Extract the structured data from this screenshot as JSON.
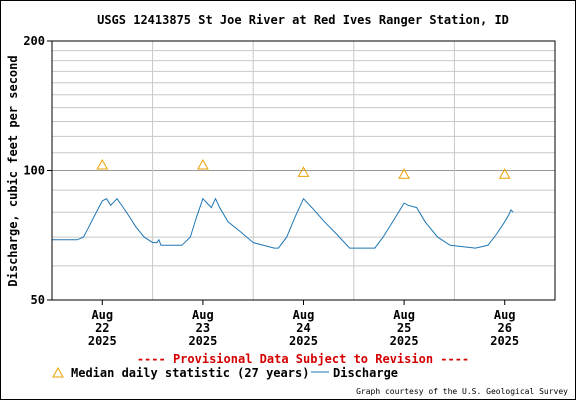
{
  "chart_data": {
    "type": "line",
    "title": "USGS 12413875 St Joe River at Red Ives Ranger Station, ID",
    "ylabel": "Discharge, cubic feet per second",
    "xlabel": "",
    "y_scale": "log",
    "ylim": [
      50,
      200
    ],
    "y_ticks": [
      50,
      100,
      200
    ],
    "y_tick_labels": [
      "50",
      "100",
      "200"
    ],
    "x_tick_labels": [
      {
        "month": "Aug",
        "day": "22",
        "year": "2025",
        "date": "2025-08-22T00:00"
      },
      {
        "month": "Aug",
        "day": "23",
        "year": "2025",
        "date": "2025-08-23T00:00"
      },
      {
        "month": "Aug",
        "day": "24",
        "year": "2025",
        "date": "2025-08-24T00:00"
      },
      {
        "month": "Aug",
        "day": "25",
        "year": "2025",
        "date": "2025-08-25T00:00"
      },
      {
        "month": "Aug",
        "day": "26",
        "year": "2025",
        "date": "2025-08-26T00:00"
      }
    ],
    "xlim": [
      "2025-08-21T12:00",
      "2025-08-26T12:00"
    ],
    "grid": true,
    "series": [
      {
        "name": "Median daily statistic (27 years)",
        "marker": "triangle",
        "color": "#e8a000",
        "x": [
          "2025-08-22T00:00",
          "2025-08-23T00:00",
          "2025-08-24T00:00",
          "2025-08-25T00:00",
          "2025-08-26T00:00"
        ],
        "y": [
          103,
          103,
          99,
          98,
          98
        ]
      },
      {
        "name": "Discharge",
        "marker": "line",
        "color": "#1f77b4",
        "x": [
          "2025-08-21T12:00",
          "2025-08-21T18:00",
          "2025-08-21T19:30",
          "2025-08-21T20:30",
          "2025-08-21T22:00",
          "2025-08-22T00:00",
          "2025-08-22T01:00",
          "2025-08-22T02:00",
          "2025-08-22T03:30",
          "2025-08-22T05:00",
          "2025-08-22T06:30",
          "2025-08-22T08:00",
          "2025-08-22T10:00",
          "2025-08-22T12:00",
          "2025-08-22T13:00",
          "2025-08-22T13:30",
          "2025-08-22T14:00",
          "2025-08-22T16:00",
          "2025-08-22T19:00",
          "2025-08-22T21:00",
          "2025-08-22T22:30",
          "2025-08-23T00:00",
          "2025-08-23T01:00",
          "2025-08-23T02:00",
          "2025-08-23T03:00",
          "2025-08-23T04:00",
          "2025-08-23T06:00",
          "2025-08-23T09:00",
          "2025-08-23T12:00",
          "2025-08-23T17:00",
          "2025-08-23T18:00",
          "2025-08-23T20:00",
          "2025-08-23T22:00",
          "2025-08-24T00:00",
          "2025-08-24T02:00",
          "2025-08-24T05:00",
          "2025-08-24T08:00",
          "2025-08-24T11:00",
          "2025-08-24T17:00",
          "2025-08-24T19:00",
          "2025-08-24T22:00",
          "2025-08-25T00:00",
          "2025-08-25T01:00",
          "2025-08-25T03:00",
          "2025-08-25T05:00",
          "2025-08-25T08:00",
          "2025-08-25T11:00",
          "2025-08-25T17:00",
          "2025-08-25T20:00",
          "2025-08-25T22:00",
          "2025-08-26T00:00",
          "2025-08-26T01:00",
          "2025-08-26T01:30",
          "2025-08-26T02:00"
        ],
        "y": [
          69,
          69,
          70,
          73,
          78,
          85,
          86,
          83,
          86,
          82,
          78,
          74,
          70,
          68,
          68,
          69,
          67,
          67,
          67,
          70,
          78,
          86,
          84,
          82,
          86,
          82,
          76,
          72,
          68,
          66,
          66,
          70,
          78,
          86,
          82,
          76,
          71,
          66,
          66,
          70,
          78,
          84,
          83,
          82,
          76,
          70,
          67,
          66,
          67,
          71,
          76,
          79,
          81,
          80
        ]
      }
    ]
  },
  "notice": "---- Provisional Data Subject to Revision ----",
  "legend": {
    "median_label": "Median daily statistic (27 years)",
    "discharge_label": "Discharge"
  },
  "credit": "Graph courtesy of the U.S. Geological Survey",
  "colors": {
    "median": "#e8a000",
    "discharge": "#1f77b4",
    "notice": "#d40000",
    "grid": "#c8c8c8"
  }
}
